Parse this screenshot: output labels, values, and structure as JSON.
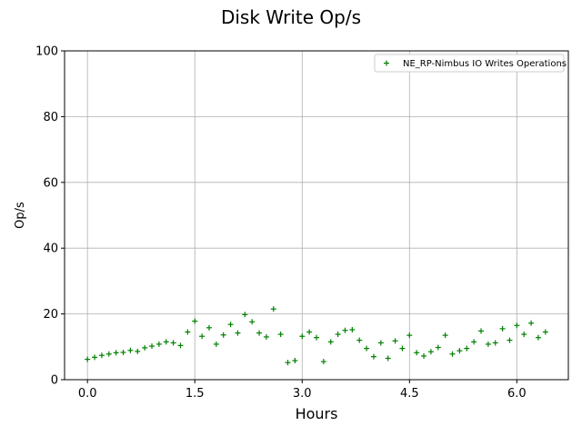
{
  "chart_data": {
    "type": "scatter",
    "title": "Disk Write Op/s",
    "xlabel": "Hours",
    "ylabel": "Op/s",
    "xlim": [
      -0.32,
      6.72
    ],
    "ylim": [
      0,
      100
    ],
    "xticks": [
      0.0,
      1.5,
      3.0,
      4.5,
      6.0
    ],
    "xtick_labels": [
      "0.0",
      "1.5",
      "3.0",
      "4.5",
      "6.0"
    ],
    "yticks": [
      0,
      20,
      40,
      60,
      80,
      100
    ],
    "ytick_labels": [
      "0",
      "20",
      "40",
      "60",
      "80",
      "100"
    ],
    "grid": true,
    "legend_position": "top-right",
    "marker": "+",
    "series": [
      {
        "name": "NE_RP-Nimbus IO Writes Operations",
        "color": "#008000",
        "x": [
          0.0,
          0.1,
          0.2,
          0.3,
          0.4,
          0.5,
          0.6,
          0.7,
          0.8,
          0.9,
          1.0,
          1.1,
          1.2,
          1.3,
          1.4,
          1.5,
          1.6,
          1.7,
          1.8,
          1.9,
          2.0,
          2.1,
          2.2,
          2.3,
          2.4,
          2.5,
          2.6,
          2.7,
          2.8,
          2.9,
          3.0,
          3.1,
          3.2,
          3.3,
          3.4,
          3.5,
          3.6,
          3.7,
          3.8,
          3.9,
          4.0,
          4.1,
          4.2,
          4.3,
          4.4,
          4.5,
          4.6,
          4.7,
          4.8,
          4.9,
          5.0,
          5.1,
          5.2,
          5.3,
          5.4,
          5.5,
          5.6,
          5.7,
          5.8,
          5.9,
          6.0,
          6.1,
          6.2,
          6.3,
          6.4
        ],
        "y": [
          6.2,
          6.8,
          7.4,
          7.8,
          8.2,
          8.3,
          8.9,
          8.6,
          9.7,
          10.2,
          10.8,
          11.5,
          11.2,
          10.4,
          14.5,
          17.8,
          13.2,
          15.8,
          10.8,
          13.6,
          16.8,
          14.2,
          19.8,
          17.6,
          14.2,
          13.0,
          21.5,
          13.8,
          5.2,
          5.8,
          13.2,
          14.5,
          12.8,
          5.5,
          11.5,
          13.8,
          15.0,
          15.2,
          12.0,
          9.5,
          7.0,
          11.2,
          6.5,
          11.8,
          9.5,
          13.5,
          8.2,
          7.2,
          8.5,
          9.8,
          13.5,
          7.8,
          8.8,
          9.5,
          11.5,
          14.8,
          10.8,
          11.2,
          15.5,
          12.0,
          16.5,
          13.8,
          17.2,
          12.8,
          14.5
        ]
      }
    ]
  }
}
